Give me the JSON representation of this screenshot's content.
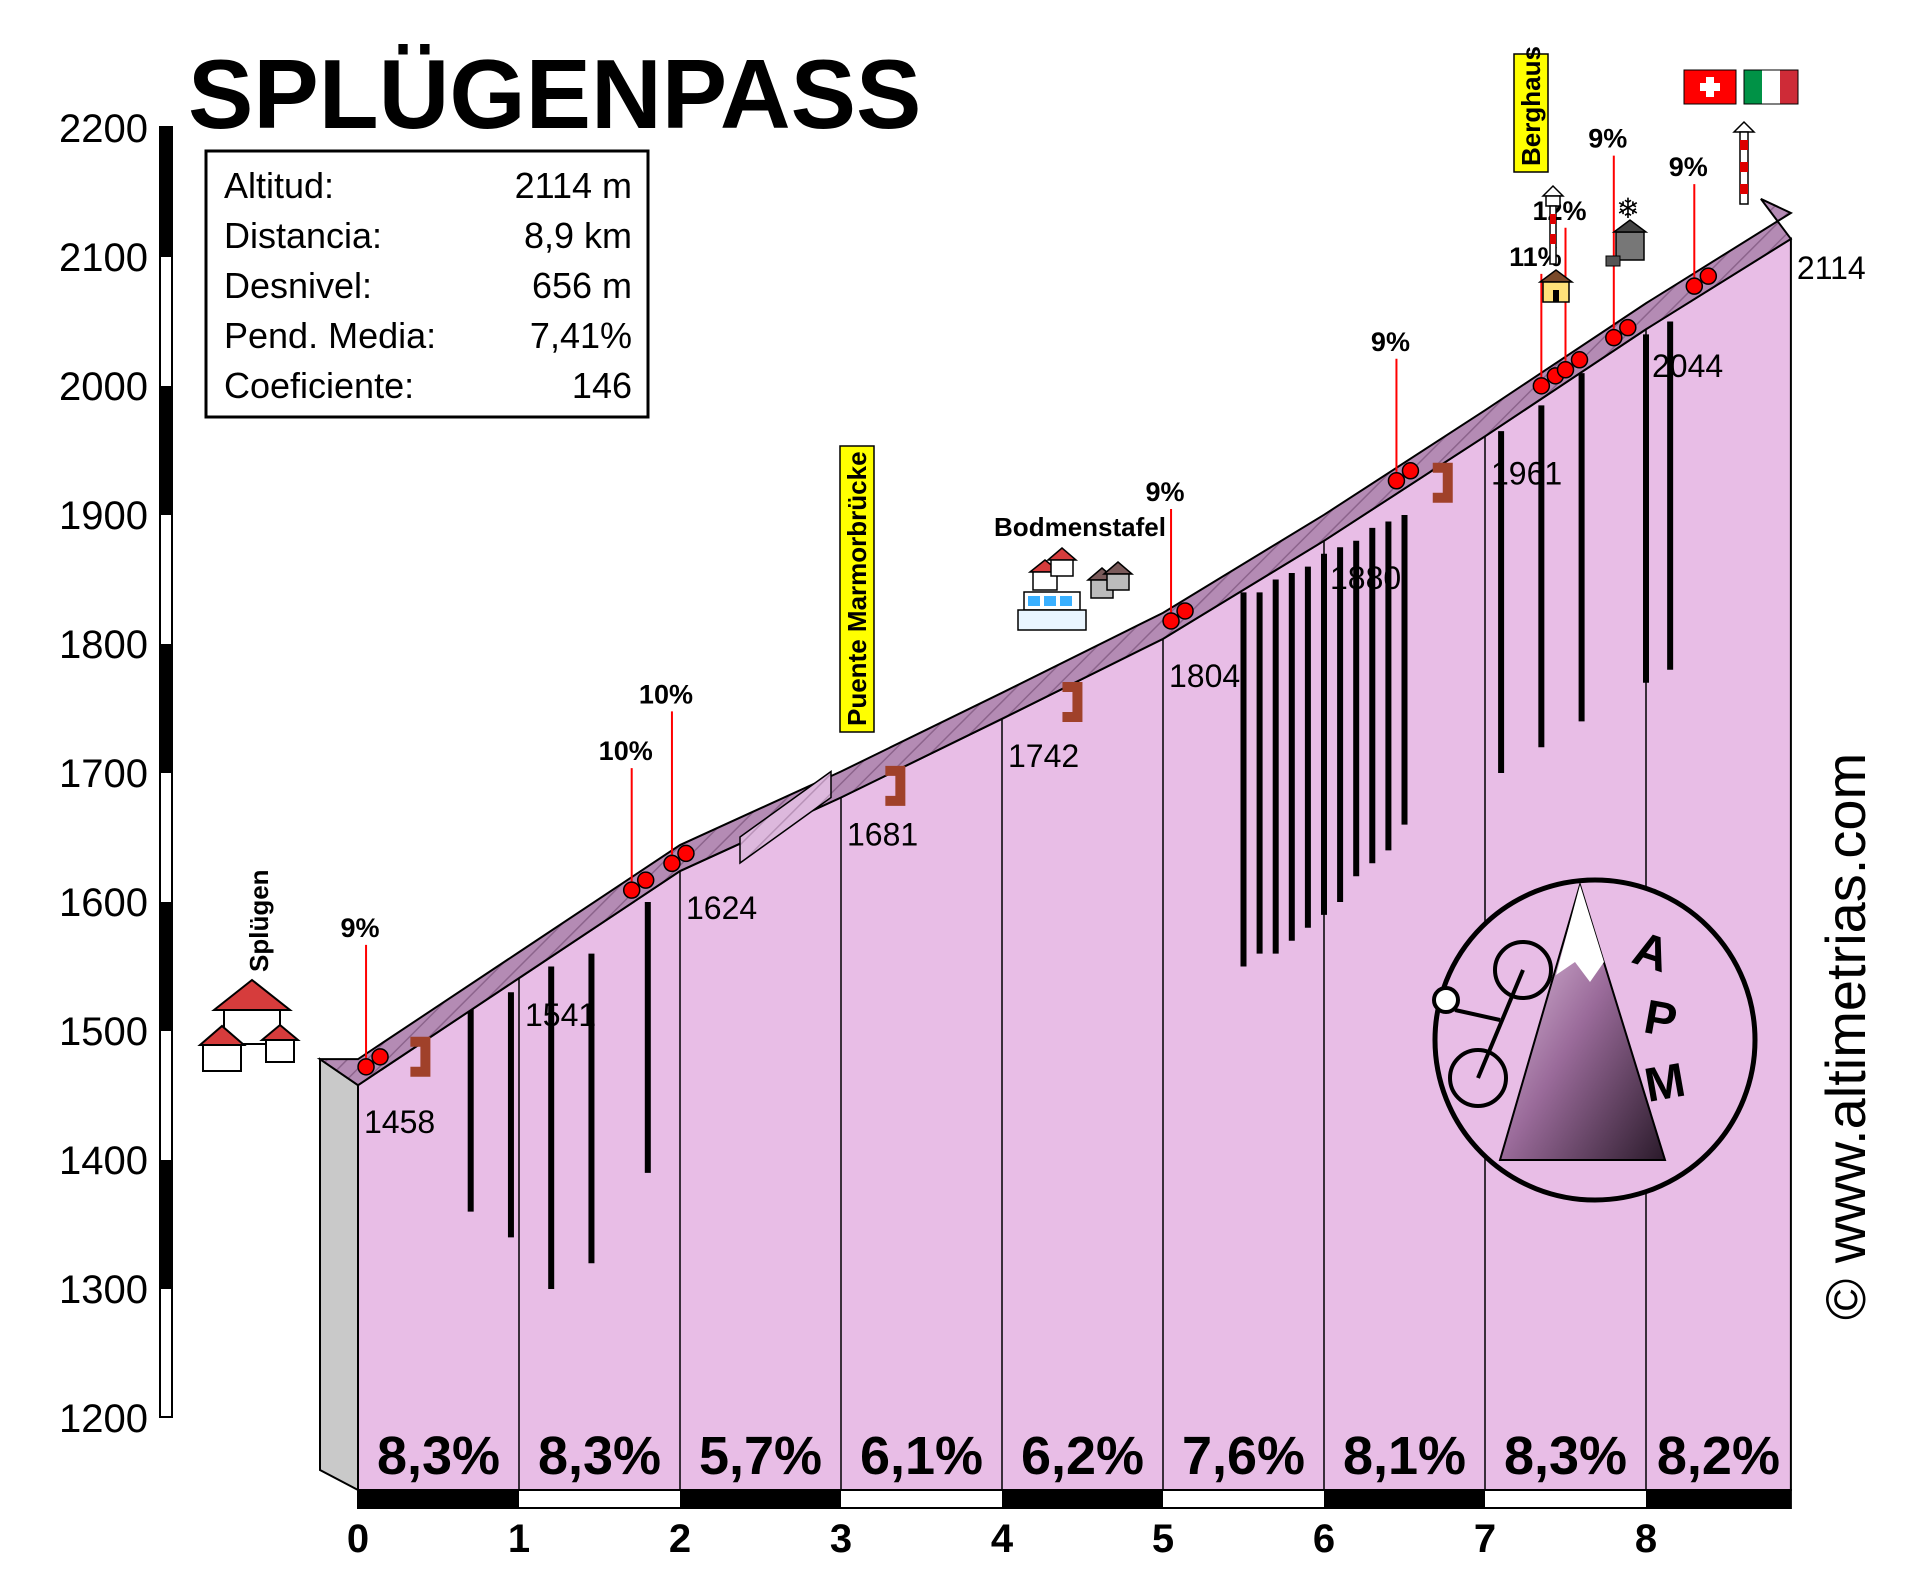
{
  "title": "SPLÜGENPASS",
  "stats": [
    {
      "label": "Altitud:",
      "value": "2114 m"
    },
    {
      "label": "Distancia:",
      "value": "8,9 km"
    },
    {
      "label": "Desnivel:",
      "value": "656 m"
    },
    {
      "label": "Pend. Media:",
      "value": "7,41%"
    },
    {
      "label": "Coeficiente:",
      "value": "146"
    }
  ],
  "website": "© www.altimetrias.com",
  "logo_letters": [
    "A",
    "P",
    "M"
  ],
  "colors": {
    "profile_fill": "#e8bde6",
    "road": "#a57fa5",
    "slope": "#cfa5cf",
    "marker": "#ff0000",
    "bridge": "#a0412a",
    "axis": "#000000"
  },
  "chart_data": {
    "type": "area",
    "title": "SPLÜGENPASS",
    "xlabel": "",
    "ylabel": "",
    "xlim": [
      0,
      8.9
    ],
    "ylim": [
      1200,
      2200
    ],
    "x_ticks": [
      "0",
      "1",
      "2",
      "3",
      "4",
      "5",
      "6",
      "7",
      "8"
    ],
    "y_ticks": [
      "1200",
      "1300",
      "1400",
      "1500",
      "1600",
      "1700",
      "1800",
      "1900",
      "2000",
      "2100",
      "2200"
    ],
    "profile": [
      {
        "x": 0,
        "y": 1458
      },
      {
        "x": 1,
        "y": 1541
      },
      {
        "x": 2,
        "y": 1624
      },
      {
        "x": 3,
        "y": 1681
      },
      {
        "x": 4,
        "y": 1742
      },
      {
        "x": 5,
        "y": 1804
      },
      {
        "x": 6,
        "y": 1880
      },
      {
        "x": 7,
        "y": 1961
      },
      {
        "x": 8,
        "y": 2044
      },
      {
        "x": 8.9,
        "y": 2114
      }
    ],
    "elevation_labels": [
      "1458",
      "1541",
      "1624",
      "1681",
      "1742",
      "1804",
      "1880",
      "1961",
      "2044",
      "2114"
    ],
    "segment_grades": [
      "8,3%",
      "8,3%",
      "5,7%",
      "6,1%",
      "6,2%",
      "7,6%",
      "8,1%",
      "8,3%",
      "8,2%"
    ],
    "steep_sections": [
      {
        "label": "9%",
        "x": 0.05
      },
      {
        "label": "10%",
        "x": 1.7
      },
      {
        "label": "10%",
        "x": 1.95
      },
      {
        "label": "9%",
        "x": 5.05
      },
      {
        "label": "9%",
        "x": 6.45
      },
      {
        "label": "11%",
        "x": 7.35
      },
      {
        "label": "12%",
        "x": 7.5
      },
      {
        "label": "9%",
        "x": 7.8
      },
      {
        "label": "9%",
        "x": 8.3
      }
    ],
    "places": [
      {
        "name": "Splügen",
        "x": -0.35
      },
      {
        "name": "Puente Marmorbrücke",
        "x": 3.0
      },
      {
        "name": "Bodmenstafel",
        "x": 4.5
      },
      {
        "name": "Berghaus",
        "x": 7.35
      }
    ]
  }
}
